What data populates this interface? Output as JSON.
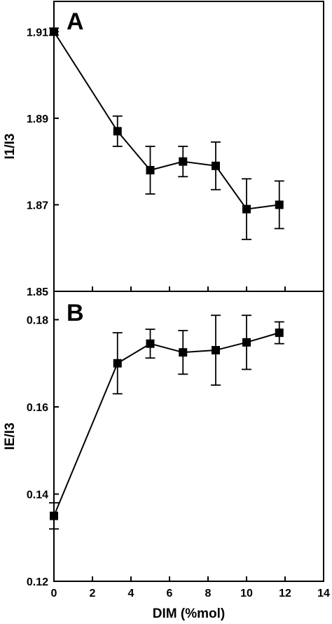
{
  "chart_data": [
    {
      "type": "line",
      "panel_label": "A",
      "ylabel": "I1/I3",
      "xlabel": "",
      "ylim": [
        1.85,
        1.917
      ],
      "yticks": [
        1.85,
        1.87,
        1.89,
        1.91
      ],
      "ytick_labels": [
        "1.85",
        "1.87",
        "1.89",
        "1.91"
      ],
      "xlim": [
        0,
        14
      ],
      "series": [
        {
          "x": [
            0,
            3.3,
            5.0,
            6.7,
            8.4,
            10.0,
            11.7
          ],
          "y": [
            1.91,
            1.887,
            1.878,
            1.88,
            1.879,
            1.869,
            1.87
          ],
          "yerr": [
            0.0008,
            0.0035,
            0.0055,
            0.0035,
            0.0055,
            0.007,
            0.0055
          ]
        }
      ],
      "marker": "square",
      "color": "#000000"
    },
    {
      "type": "line",
      "panel_label": "B",
      "ylabel": "IE/I3",
      "xlabel": "DIM (%mol)",
      "ylim": [
        0.12,
        0.1865
      ],
      "yticks": [
        0.12,
        0.14,
        0.16,
        0.18
      ],
      "ytick_labels": [
        "0.12",
        "0.14",
        "0.16",
        "0.18"
      ],
      "xlim": [
        0,
        14
      ],
      "xticks": [
        0,
        2,
        4,
        6,
        8,
        10,
        12,
        14
      ],
      "xtick_labels": [
        "0",
        "2",
        "4",
        "6",
        "8",
        "10",
        "12",
        "14"
      ],
      "series": [
        {
          "x": [
            0,
            3.3,
            5.0,
            6.7,
            8.4,
            10.0,
            11.7
          ],
          "y": [
            0.135,
            0.17,
            0.1745,
            0.1725,
            0.173,
            0.1748,
            0.177
          ],
          "yerr": [
            0.003,
            0.007,
            0.0033,
            0.005,
            0.008,
            0.0062,
            0.0025
          ]
        }
      ],
      "marker": "square",
      "color": "#000000"
    }
  ]
}
